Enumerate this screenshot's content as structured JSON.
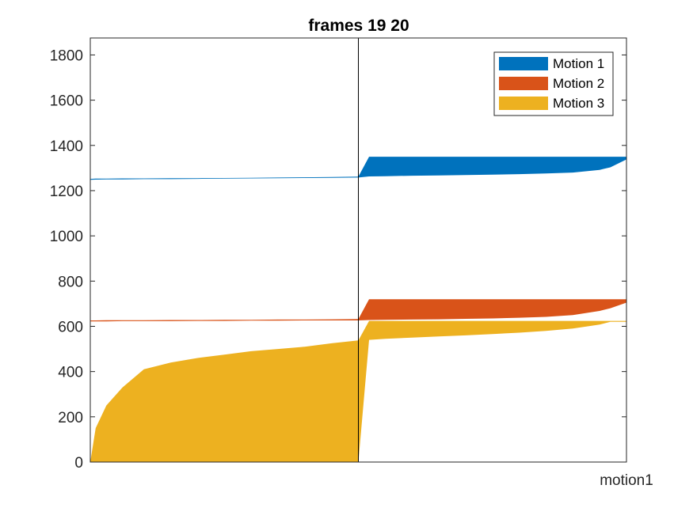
{
  "chart_data": {
    "type": "area",
    "title": "frames 19 20",
    "xlabel": "motion1",
    "ylabel": "",
    "ylim": [
      0,
      1875
    ],
    "yticks": [
      0,
      200,
      400,
      600,
      800,
      1000,
      1200,
      1400,
      1600,
      1800
    ],
    "grid": false,
    "legend_position": "top-right",
    "x_normalized": [
      0,
      0.01,
      0.03,
      0.06,
      0.1,
      0.15,
      0.2,
      0.25,
      0.3,
      0.35,
      0.4,
      0.45,
      0.5,
      0.52,
      0.55,
      0.6,
      0.65,
      0.7,
      0.75,
      0.8,
      0.85,
      0.9,
      0.95,
      0.97,
      1.0
    ],
    "series": [
      {
        "name": "Motion 1",
        "color": "#0072BD",
        "lower": [
          1248,
          1249,
          1250,
          1250,
          1251,
          1251,
          1252,
          1253,
          1254,
          1255,
          1256,
          1257,
          1258,
          1263,
          1264,
          1266,
          1267,
          1269,
          1271,
          1273,
          1276,
          1280,
          1292,
          1303,
          1338
        ],
        "upper": [
          1252,
          1253,
          1253,
          1254,
          1254,
          1255,
          1255,
          1256,
          1257,
          1258,
          1259,
          1260,
          1262,
          1350,
          1350,
          1350,
          1350,
          1350,
          1350,
          1350,
          1350,
          1350,
          1350,
          1350,
          1350
        ]
      },
      {
        "name": "Motion 2",
        "color": "#D95319",
        "lower": [
          622,
          622,
          622,
          623,
          623,
          623,
          624,
          624,
          625,
          625,
          626,
          626,
          626,
          628,
          629,
          630,
          631,
          633,
          635,
          638,
          642,
          650,
          668,
          680,
          705
        ],
        "upper": [
          626,
          626,
          627,
          627,
          627,
          628,
          628,
          629,
          629,
          630,
          630,
          631,
          632,
          720,
          720,
          720,
          720,
          720,
          720,
          720,
          720,
          720,
          720,
          720,
          720
        ]
      },
      {
        "name": "Motion 3",
        "color": "#EDB120",
        "lower": [
          0,
          0,
          0,
          0,
          0,
          0,
          0,
          0,
          0,
          0,
          0,
          0,
          0,
          540,
          545,
          550,
          555,
          560,
          566,
          572,
          580,
          590,
          608,
          620,
          620
        ],
        "upper": [
          0,
          150,
          250,
          330,
          410,
          440,
          460,
          475,
          490,
          500,
          510,
          525,
          538,
          624,
          624,
          624,
          624,
          624,
          624,
          624,
          624,
          624,
          624,
          624,
          624
        ]
      }
    ]
  }
}
